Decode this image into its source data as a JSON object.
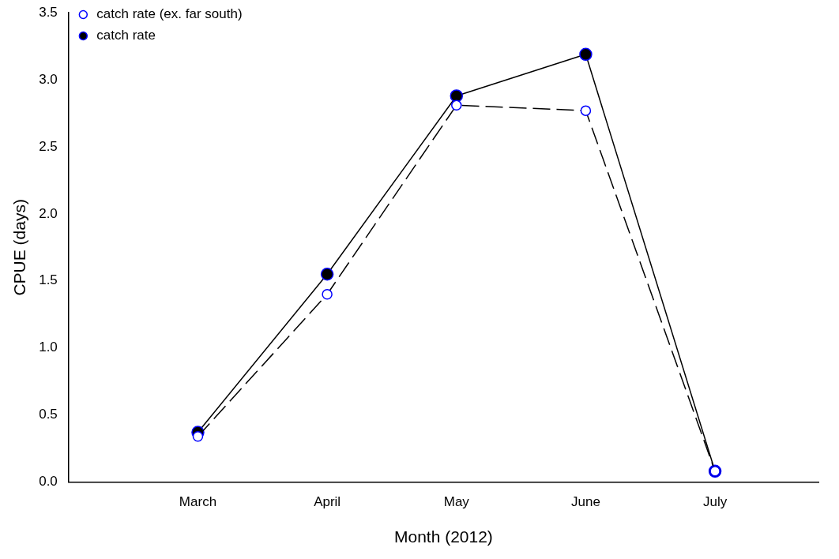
{
  "chart_data": {
    "type": "line",
    "xlabel": "Month (2012)",
    "ylabel": "CPUE (days)",
    "categories": [
      "March",
      "April",
      "May",
      "June",
      "July"
    ],
    "series": [
      {
        "name": "catch rate",
        "color": "#000000",
        "line_style": "solid",
        "values": [
          0.37,
          1.55,
          2.88,
          3.19,
          0.08
        ]
      },
      {
        "name": "catch rate (ex. far south)",
        "color": "#ffffff",
        "line_style": "dashed",
        "values": [
          0.34,
          1.4,
          2.81,
          2.77,
          0.08
        ]
      }
    ],
    "ylim": [
      0,
      3.5
    ],
    "yticks": [
      {
        "value": 0,
        "label": "0.0"
      },
      0.5,
      {
        "value": 1,
        "label": "1.0"
      },
      1.5,
      {
        "value": 2,
        "label": "2.0"
      },
      2.5,
      {
        "value": 3,
        "label": "3.0"
      },
      3.5
    ],
    "grid": false,
    "legend": "top left",
    "marker": "circle"
  }
}
